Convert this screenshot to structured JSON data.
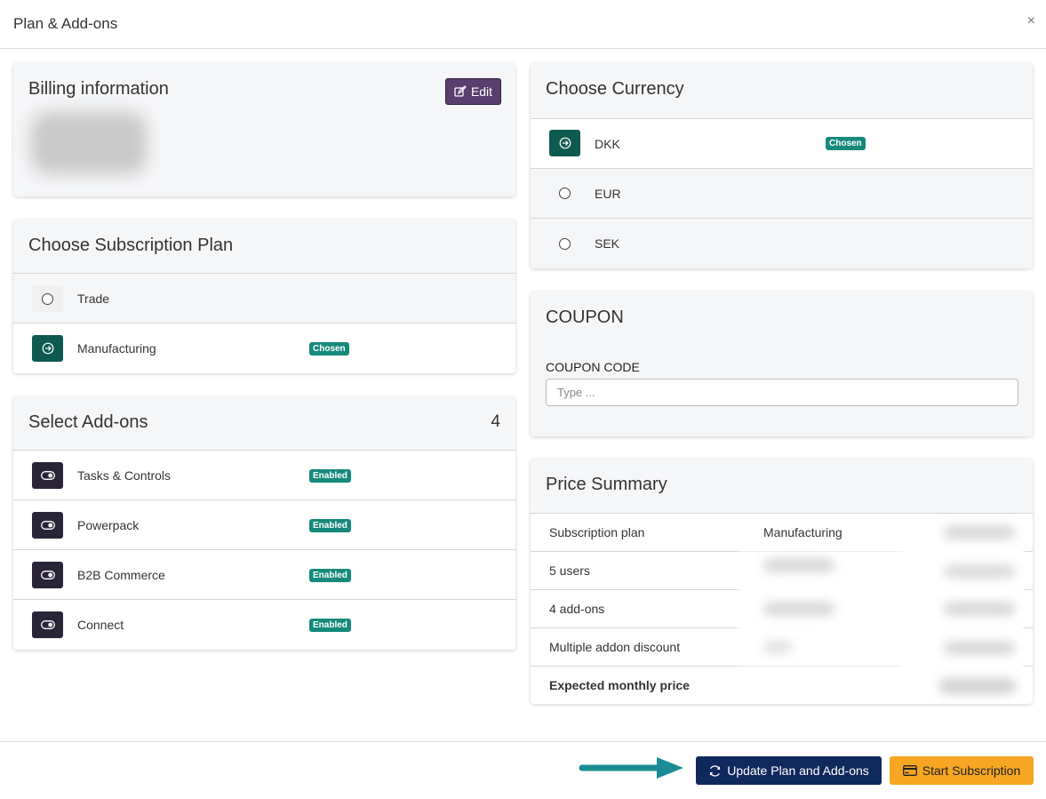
{
  "modal": {
    "title": "Plan & Add-ons",
    "close": "×"
  },
  "billing": {
    "title": "Billing information",
    "edit_label": "Edit"
  },
  "plan": {
    "title": "Choose Subscription Plan",
    "items": [
      {
        "label": "Trade",
        "chosen": false,
        "badge": ""
      },
      {
        "label": "Manufacturing",
        "chosen": true,
        "badge": "Chosen"
      }
    ]
  },
  "addons": {
    "title": "Select Add-ons",
    "count": "4",
    "items": [
      {
        "label": "Tasks & Controls",
        "badge": "Enabled"
      },
      {
        "label": "Powerpack",
        "badge": "Enabled"
      },
      {
        "label": "B2B Commerce",
        "badge": "Enabled"
      },
      {
        "label": "Connect",
        "badge": "Enabled"
      }
    ]
  },
  "currency": {
    "title": "Choose Currency",
    "items": [
      {
        "label": "DKK",
        "chosen": true,
        "badge": "Chosen"
      },
      {
        "label": "EUR",
        "chosen": false,
        "badge": ""
      },
      {
        "label": "SEK",
        "chosen": false,
        "badge": ""
      }
    ]
  },
  "coupon": {
    "title": "COUPON",
    "label": "COUPON CODE",
    "placeholder": "Type ..."
  },
  "price_summary": {
    "title": "Price Summary",
    "rows": [
      {
        "label": "Subscription plan",
        "value": "Manufacturing"
      },
      {
        "label": "5 users",
        "value": ""
      },
      {
        "label": "4 add-ons",
        "value": ""
      },
      {
        "label": "Multiple addon discount",
        "value": ""
      },
      {
        "label": "Expected monthly price",
        "value": ""
      }
    ]
  },
  "footer": {
    "update_label": "Update Plan and Add-ons",
    "start_label": "Start Subscription"
  },
  "colors": {
    "teal": "#0f5a50",
    "badge": "#15897c",
    "navy": "#10295c",
    "orange": "#f5a623",
    "purple": "#5a3e6e"
  }
}
